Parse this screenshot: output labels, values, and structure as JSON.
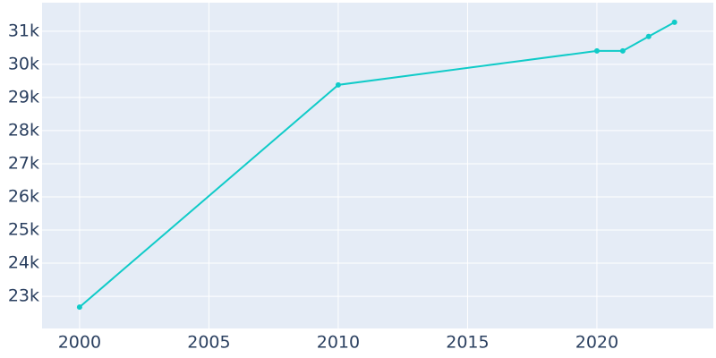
{
  "chart_data": {
    "type": "line",
    "x": [
      2000,
      2010,
      2020,
      2021,
      2022,
      2023
    ],
    "series": [
      {
        "color": "#10cbc8",
        "values": [
          22676,
          29380,
          30405,
          30405,
          30840,
          31270
        ]
      }
    ],
    "xlim": [
      1998.55,
      2024.5
    ],
    "xticks": [
      2000,
      2005,
      2010,
      2015,
      2020
    ],
    "ylim": [
      22030,
      31860
    ],
    "yticks": [
      {
        "value": 23000,
        "label": "23k"
      },
      {
        "value": 24000,
        "label": "24k"
      },
      {
        "value": 25000,
        "label": "25k"
      },
      {
        "value": 26000,
        "label": "26k"
      },
      {
        "value": 27000,
        "label": "27k"
      },
      {
        "value": 28000,
        "label": "28k"
      },
      {
        "value": 29000,
        "label": "29k"
      },
      {
        "value": 30000,
        "label": "30k"
      },
      {
        "value": 31000,
        "label": "31k"
      }
    ],
    "grid": true
  }
}
